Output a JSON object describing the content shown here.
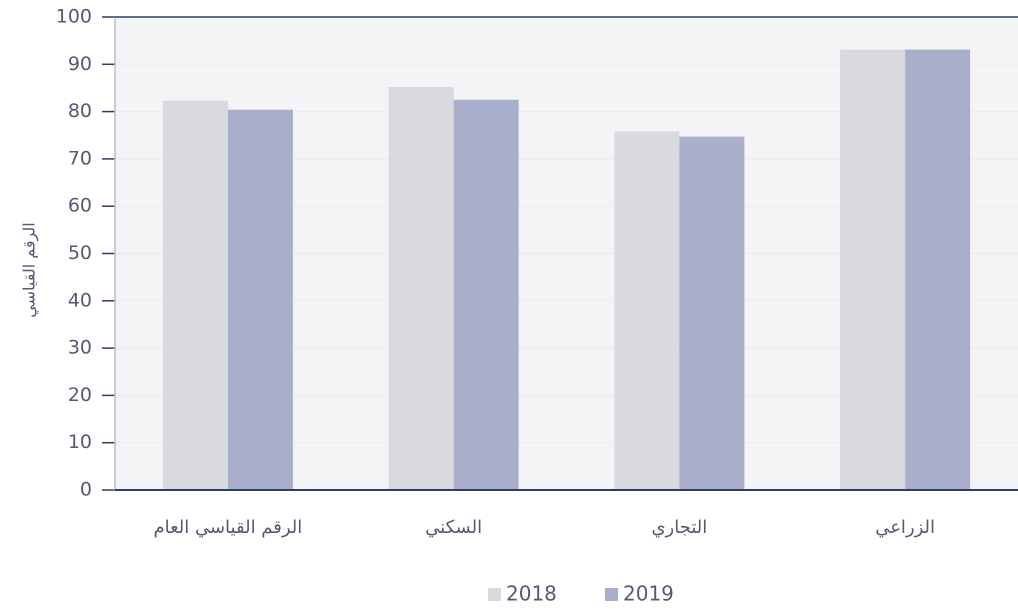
{
  "chart_data": {
    "type": "bar",
    "y_label": "الرقم القياسي",
    "categories": [
      "الرقم القياسي العام",
      "السكني",
      "التجاري",
      "الزراعي"
    ],
    "series": [
      {
        "name": "2018",
        "color": "#d9d9e0",
        "values": [
          82.3,
          85.2,
          75.8,
          93.1
        ]
      },
      {
        "name": "2019",
        "color": "#a9aeca",
        "values": [
          80.4,
          82.5,
          74.7,
          93.1
        ]
      }
    ],
    "ylim": [
      0,
      100
    ],
    "yticks": [
      0,
      10,
      20,
      30,
      40,
      50,
      60,
      70,
      80,
      90,
      100
    ],
    "grid": true,
    "legend": "bottom"
  }
}
